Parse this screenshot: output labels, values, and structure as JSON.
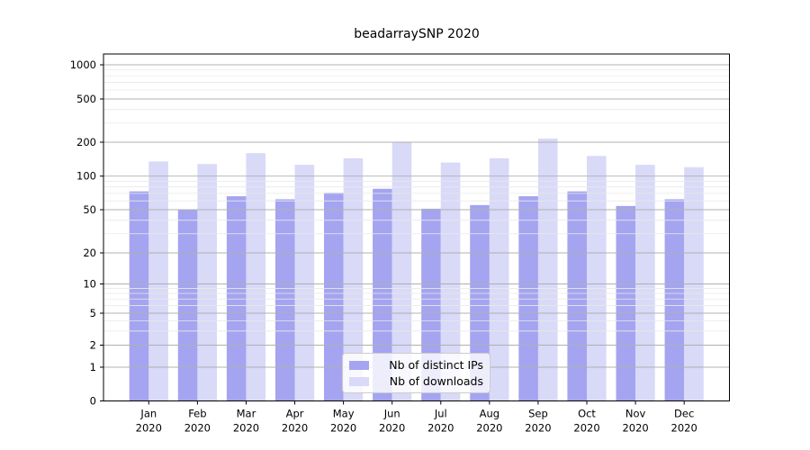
{
  "chart_data": {
    "type": "bar",
    "title": "beadarraySNP 2020",
    "categories": [
      "Jan",
      "Feb",
      "Mar",
      "Apr",
      "May",
      "Jun",
      "Jul",
      "Aug",
      "Sep",
      "Oct",
      "Nov",
      "Dec"
    ],
    "x_tick_second_line": "2020",
    "series": [
      {
        "name": "Nb of distinct IPs",
        "color": "#a4a4f0",
        "values": [
          73,
          50,
          66,
          62,
          71,
          77,
          51,
          55,
          66,
          73,
          54,
          62
        ]
      },
      {
        "name": "Nb of downloads",
        "color": "#d9d9f8",
        "values": [
          135,
          128,
          160,
          126,
          144,
          198,
          132,
          144,
          216,
          151,
          126,
          120
        ]
      }
    ],
    "yscale": "symlog",
    "yticks": [
      0,
      1,
      2,
      5,
      10,
      20,
      50,
      100,
      200,
      500,
      1000
    ],
    "ylim": [
      0,
      1250
    ],
    "grid": true,
    "legend_position": "lower center",
    "colors": {
      "background": "#ffffff",
      "axis": "#000000",
      "major_grid": "#b0b0b0",
      "minor_grid": "#e9e9e9",
      "tick_label": "#000000"
    }
  }
}
